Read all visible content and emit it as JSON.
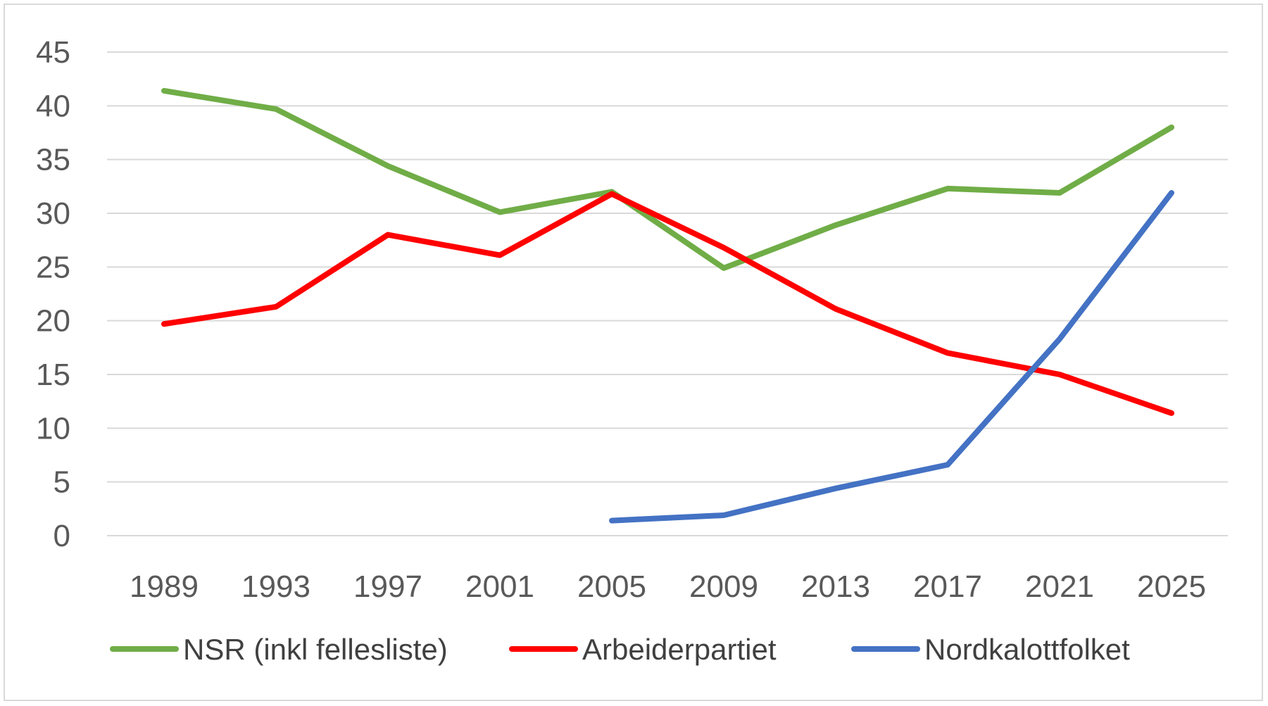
{
  "chart_data": {
    "type": "line",
    "x": [
      "1989",
      "1993",
      "1997",
      "2001",
      "2005",
      "2009",
      "2013",
      "2017",
      "2021",
      "2025"
    ],
    "ylim": [
      0,
      45
    ],
    "yticks": [
      "0",
      "5",
      "10",
      "15",
      "20",
      "25",
      "30",
      "35",
      "40",
      "45"
    ],
    "grid": true,
    "legend_position": "bottom",
    "series": [
      {
        "name": "NSR (inkl fellesliste)",
        "color": "#70ad47",
        "values": [
          41.4,
          39.7,
          34.4,
          30.1,
          32.0,
          24.9,
          28.9,
          32.3,
          31.9,
          38.0
        ]
      },
      {
        "name": "Arbeiderpartiet",
        "color": "#ff0000",
        "values": [
          19.7,
          21.3,
          28.0,
          26.1,
          31.8,
          26.8,
          21.1,
          17.0,
          15.0,
          11.4
        ]
      },
      {
        "name": "Nordkalottfolket",
        "color": "#4472c4",
        "values": [
          null,
          null,
          null,
          null,
          1.4,
          1.9,
          4.4,
          6.6,
          18.3,
          31.9
        ]
      }
    ]
  }
}
